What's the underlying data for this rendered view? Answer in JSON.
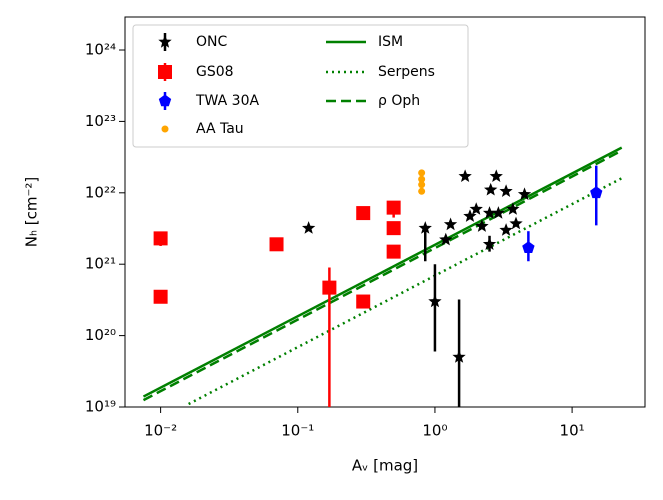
{
  "chart_data": {
    "type": "scatter",
    "xlabel": "Aᵥ [mag]",
    "ylabel": "Nₕ [cm⁻²]",
    "xscale": "log",
    "yscale": "log",
    "xlim": [
      0.0055,
      34
    ],
    "ylim": [
      1e+19,
      2.9e+24
    ],
    "xticks": [
      {
        "value": 0.01,
        "label": "10⁻²"
      },
      {
        "value": 0.1,
        "label": "10⁻¹"
      },
      {
        "value": 1,
        "label": "10⁰"
      },
      {
        "value": 10,
        "label": "10¹"
      }
    ],
    "yticks": [
      {
        "value": 1e+19,
        "label": "10¹⁹"
      },
      {
        "value": 1e+20,
        "label": "10²⁰"
      },
      {
        "value": 1e+21,
        "label": "10²¹"
      },
      {
        "value": 1e+22,
        "label": "10²²"
      },
      {
        "value": 1e+23,
        "label": "10²³"
      },
      {
        "value": 1e+24,
        "label": "10²⁴"
      }
    ],
    "legend": "upper left",
    "series": [
      {
        "name": "ONC",
        "color": "#000000",
        "marker": "star",
        "x": [
          0.12,
          0.85,
          1.0,
          1.5,
          1.2,
          1.3,
          1.66,
          1.8,
          2.0,
          2.2,
          2.5,
          2.55,
          2.8,
          2.5,
          2.9,
          3.3,
          3.3,
          3.7,
          4.5,
          3.9
        ],
        "values": [
          3.2e+21,
          3.2e+21,
          3e+20,
          5e+19,
          2.2e+21,
          3.6e+21,
          1.7e+22,
          4.7e+21,
          5.9e+21,
          3.4e+21,
          1.9e+21,
          1.1e+22,
          1.7e+22,
          5.2e+21,
          5.2e+21,
          1.05e+22,
          3e+21,
          5.9e+21,
          9.5e+21,
          3.7e+21
        ],
        "ylow": [
          null,
          1.1e+21,
          6e+19,
          1e+19,
          null,
          null,
          null,
          null,
          null,
          null,
          1.5e+21,
          null,
          null,
          null,
          null,
          null,
          null,
          null,
          null,
          null
        ],
        "yhigh": [
          null,
          3.6e+21,
          1e+21,
          3.2e+20,
          null,
          null,
          null,
          null,
          null,
          null,
          2.5e+21,
          null,
          null,
          null,
          null,
          null,
          null,
          null,
          null,
          null
        ]
      },
      {
        "name": "GS08",
        "color": "#ff0000",
        "marker": "square",
        "x": [
          0.01,
          0.01,
          0.07,
          0.17,
          0.3,
          0.3,
          0.5,
          0.5,
          0.5
        ],
        "values": [
          2.3e+21,
          3.5e+20,
          1.9e+21,
          4.7e+20,
          5.2e+21,
          3e+20,
          6.2e+21,
          3.2e+21,
          1.5e+21
        ],
        "ylow": [
          1.8e+21,
          null,
          null,
          1e+19,
          null,
          null,
          4.5e+21,
          null,
          null
        ],
        "yhigh": [
          2.7e+21,
          null,
          null,
          9e+20,
          null,
          null,
          7e+21,
          null,
          null
        ]
      },
      {
        "name": "TWA 30A",
        "color": "#0000ff",
        "marker": "pentagon",
        "x": [
          4.8,
          15
        ],
        "values": [
          1.7e+21,
          1e+22
        ],
        "ylow": [
          1.1e+21,
          3.5e+21
        ],
        "yhigh": [
          2.9e+21,
          2.4e+22
        ]
      },
      {
        "name": "AA Tau",
        "color": "#ffa500",
        "marker": "circle",
        "x": [
          0.8,
          0.8,
          0.8,
          0.8
        ],
        "values": [
          1.9e+22,
          1.55e+22,
          1.3e+22,
          1.05e+22
        ]
      }
    ],
    "lines": [
      {
        "name": "ISM",
        "color": "#008000",
        "style": "solid",
        "x": [
          0.0075,
          23
        ],
        "values": [
          1.4e+19,
          4.3e+22
        ]
      },
      {
        "name": "Serpens",
        "color": "#008000",
        "style": "dotted",
        "x": [
          0.016,
          23
        ],
        "values": [
          1.1e+19,
          1.6e+22
        ]
      },
      {
        "name": "ρ Oph",
        "color": "#008000",
        "style": "dashed",
        "x": [
          0.0075,
          23
        ],
        "values": [
          1.25e+19,
          3.9e+22
        ]
      }
    ]
  }
}
